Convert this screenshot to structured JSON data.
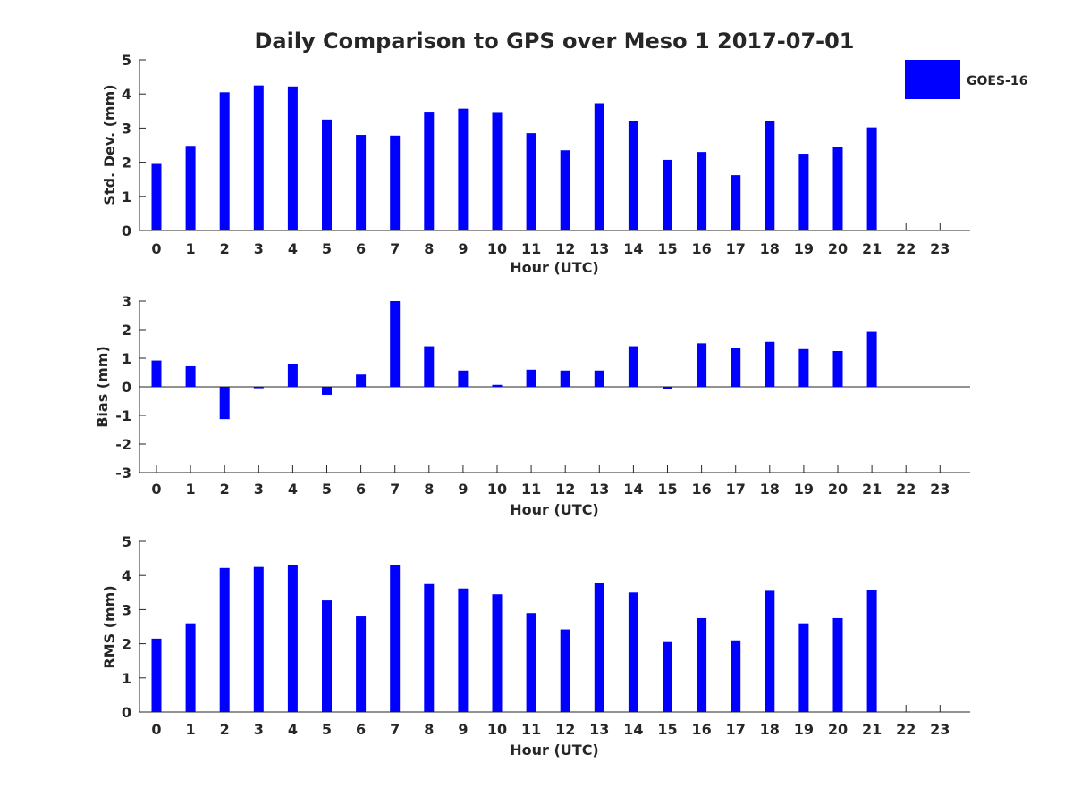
{
  "chart_data": [
    {
      "type": "bar",
      "title": "Daily Comparison to GPS over Meso 1 2017-07-01",
      "xlabel": "Hour (UTC)",
      "ylabel": "Std. Dev. (mm)",
      "ylim": [
        0,
        5
      ],
      "yticks": [
        "0",
        "1",
        "2",
        "3",
        "4",
        "5"
      ],
      "categories": [
        "0",
        "1",
        "2",
        "3",
        "4",
        "5",
        "6",
        "7",
        "8",
        "9",
        "10",
        "11",
        "12",
        "13",
        "14",
        "15",
        "16",
        "17",
        "18",
        "19",
        "20",
        "21",
        "22",
        "23"
      ],
      "series": [
        {
          "name": "GOES-16",
          "color": "#0000ff",
          "values": [
            1.95,
            2.48,
            4.05,
            4.25,
            4.22,
            3.25,
            2.8,
            2.78,
            3.48,
            3.57,
            3.47,
            2.85,
            2.35,
            3.73,
            3.22,
            2.07,
            2.3,
            1.62,
            3.2,
            2.25,
            2.45,
            3.02,
            null,
            null
          ]
        }
      ],
      "legend": "top-right",
      "grid": false
    },
    {
      "type": "bar",
      "title": "",
      "xlabel": "Hour (UTC)",
      "ylabel": "Bias (mm)",
      "ylim": [
        -3,
        3
      ],
      "yticks": [
        "-3",
        "-2",
        "-1",
        "0",
        "1",
        "2",
        "3"
      ],
      "categories": [
        "0",
        "1",
        "2",
        "3",
        "4",
        "5",
        "6",
        "7",
        "8",
        "9",
        "10",
        "11",
        "12",
        "13",
        "14",
        "15",
        "16",
        "17",
        "18",
        "19",
        "20",
        "21",
        "22",
        "23"
      ],
      "series": [
        {
          "name": "GOES-16",
          "color": "#0000ff",
          "values": [
            0.92,
            0.72,
            -1.13,
            -0.05,
            0.79,
            -0.28,
            0.43,
            3.0,
            1.42,
            0.57,
            0.07,
            0.6,
            0.57,
            0.57,
            1.42,
            -0.08,
            1.52,
            1.35,
            1.57,
            1.32,
            1.25,
            1.92,
            null,
            null
          ]
        }
      ],
      "grid": false
    },
    {
      "type": "bar",
      "title": "",
      "xlabel": "Hour (UTC)",
      "ylabel": "RMS (mm)",
      "ylim": [
        0,
        5
      ],
      "yticks": [
        "0",
        "1",
        "2",
        "3",
        "4",
        "5"
      ],
      "categories": [
        "0",
        "1",
        "2",
        "3",
        "4",
        "5",
        "6",
        "7",
        "8",
        "9",
        "10",
        "11",
        "12",
        "13",
        "14",
        "15",
        "16",
        "17",
        "18",
        "19",
        "20",
        "21",
        "22",
        "23"
      ],
      "series": [
        {
          "name": "GOES-16",
          "color": "#0000ff",
          "values": [
            2.15,
            2.6,
            4.22,
            4.25,
            4.3,
            3.27,
            2.8,
            4.32,
            3.75,
            3.62,
            3.45,
            2.9,
            2.42,
            3.77,
            3.5,
            2.05,
            2.75,
            2.1,
            3.55,
            2.6,
            2.75,
            3.58,
            null,
            null
          ]
        }
      ],
      "grid": false
    }
  ],
  "legend": {
    "label": "GOES-16",
    "color": "#0000ff"
  }
}
